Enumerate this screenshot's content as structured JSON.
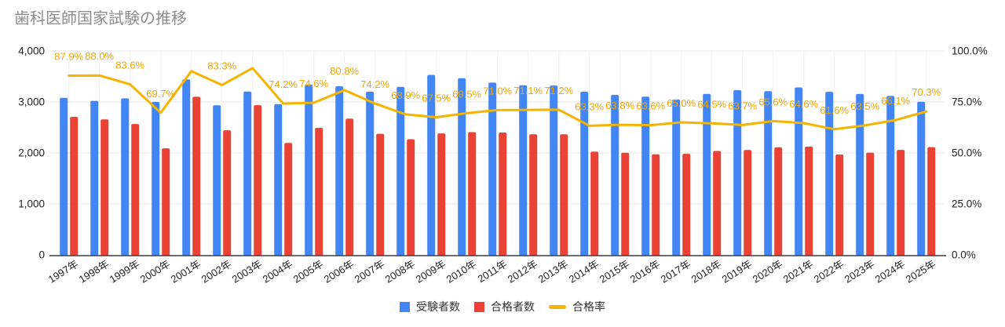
{
  "title": "歯科医師国家試験の推移",
  "colors": {
    "examinees_bar": "#4285F4",
    "passers_bar": "#EA4335",
    "rate_line": "#F4B400",
    "rate_label_text": "#F2A600",
    "title_text": "#8D8D8D",
    "axis_text": "#1F1F1F",
    "gridline_h": "#E7E7E7",
    "gridline_v": "#F0F0F0",
    "axis_line": "#3E3E3E",
    "legend_text": "#333333",
    "background": "#FFFFFF"
  },
  "legend": [
    {
      "key": "examinees",
      "label": "受験者数",
      "shape": "square",
      "color": "#4285F4"
    },
    {
      "key": "passers",
      "label": "合格者数",
      "shape": "square",
      "color": "#EA4335"
    },
    {
      "key": "pass-rate",
      "label": "合格率",
      "shape": "line",
      "color": "#F4B400"
    }
  ],
  "chart_data": {
    "type": "bar",
    "subtype": "combo-bar-line",
    "title": "歯科医師国家試験の推移",
    "legend_position": "bottom",
    "grid": "horizontal-major-plus-faint-vertical",
    "categories": [
      "1997年",
      "1998年",
      "1999年",
      "2000年",
      "2001年",
      "2002年",
      "2003年",
      "2004年",
      "2005年",
      "2006年",
      "2007年",
      "2008年",
      "2009年",
      "2010年",
      "2011年",
      "2012年",
      "2013年",
      "2014年",
      "2015年",
      "2016年",
      "2017年",
      "2018年",
      "2019年",
      "2020年",
      "2021年",
      "2022年",
      "2023年",
      "2024年",
      "2025年"
    ],
    "series": [
      {
        "key": "examinees",
        "name": "受験者数",
        "kind": "bar",
        "axis": "left",
        "color": "#4285F4",
        "values": [
          3080,
          3022,
          3071,
          3001,
          3442,
          2935,
          3205,
          2958,
          3343,
          3308,
          3200,
          3295,
          3531,
          3465,
          3378,
          3326,
          3321,
          3200,
          3138,
          3103,
          3049,
          3159,
          3232,
          3211,
          3284,
          3198,
          3157,
          3117,
          3005
        ]
      },
      {
        "key": "passers",
        "name": "合格者数",
        "kind": "bar",
        "axis": "left",
        "color": "#EA4335",
        "values": [
          2707,
          2659,
          2568,
          2091,
          3102,
          2444,
          2937,
          2195,
          2493,
          2673,
          2375,
          2269,
          2383,
          2408,
          2400,
          2364,
          2366,
          2025,
          2003,
          1973,
          1983,
          2039,
          2059,
          2107,
          2123,
          1969,
          2006,
          2060,
          2114
        ]
      },
      {
        "key": "pass-rate",
        "name": "合格率",
        "kind": "line",
        "axis": "right",
        "color": "#F4B400",
        "values": [
          87.9,
          88.0,
          83.6,
          69.7,
          90.1,
          83.3,
          91.6,
          74.2,
          74.6,
          80.8,
          74.2,
          68.9,
          67.5,
          69.5,
          71.0,
          71.1,
          71.2,
          63.3,
          63.8,
          63.6,
          65.0,
          64.5,
          63.7,
          65.6,
          64.6,
          61.6,
          63.5,
          66.1,
          70.3
        ],
        "point_labels": [
          "87.9%",
          "88.0%",
          "83.6%",
          "69.7%",
          "",
          "83.3%",
          "",
          "74.2%",
          "74.6%",
          "80.8%",
          "74.2%",
          "68.9%",
          "67.5%",
          "69.5%",
          "71.0%",
          "71.1%",
          "71.2%",
          "63.3%",
          "63.8%",
          "63.6%",
          "65.0%",
          "64.5%",
          "63.7%",
          "65.6%",
          "64.6%",
          "61.6%",
          "63.5%",
          "66.1%",
          "70.3%"
        ]
      }
    ],
    "left_axis": {
      "min": 0,
      "max": 4000,
      "tick_values": [
        0,
        1000,
        2000,
        3000,
        4000
      ],
      "tick_labels": [
        "0",
        "1,000",
        "2,000",
        "3,000",
        "4,000"
      ]
    },
    "right_axis": {
      "min": 0,
      "max": 100,
      "tick_values": [
        0,
        25,
        50,
        75,
        100
      ],
      "tick_labels": [
        "0.0%",
        "25.0%",
        "50.0%",
        "75.0%",
        "100.0%"
      ]
    },
    "x_axis": {
      "tick_rotation_deg": -32
    }
  }
}
